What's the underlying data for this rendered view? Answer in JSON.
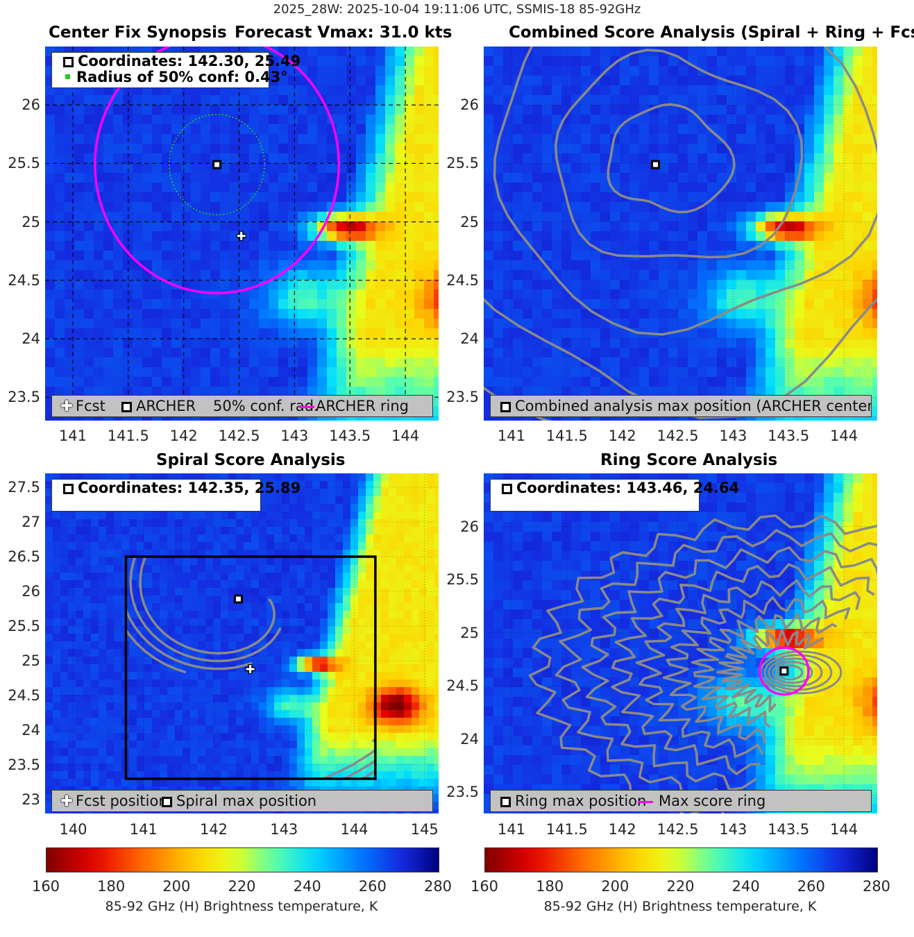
{
  "suptitle": "2025_28W: 2025-10-04 19:11:06 UTC, SSMIS-18 85-92GHz",
  "colors": {
    "ring": "#ff00ff",
    "contour": "#8a8a8a",
    "conf": "#22cc22",
    "box": "#000000"
  },
  "panels": {
    "p1": {
      "title_left": "Center Fix Synopsis",
      "title_right": "Forecast Vmax: 31.0 kts",
      "info1": "Coordinates: 142.30, 25.49",
      "info2": "Radius of 50% conf: 0.43°",
      "legend": {
        "fcst": "Fcst",
        "archer": "ARCHER",
        "conf": "50% conf. rad.",
        "ring": "ARCHER ring"
      }
    },
    "p2": {
      "title": "Combined Score Analysis (Spiral + Ring + Fcst_Pe",
      "legend": "Combined analysis max position (ARCHER center)"
    },
    "p3": {
      "title": "Spiral Score Analysis",
      "info1": "Coordinates: 142.35, 25.89",
      "legend": {
        "fcst": "Fcst position",
        "spiral": "Spiral max position"
      }
    },
    "p4": {
      "title": "Ring Score Analysis",
      "info1": "Coordinates: 143.46, 24.64",
      "legend": {
        "ring_pos": "Ring max position",
        "ring": "Max score ring"
      }
    }
  },
  "chart_data": [
    {
      "type": "heatmap",
      "title": "Center Fix Synopsis",
      "subtitle": "Forecast Vmax: 31.0 kts",
      "xlim": [
        140.75,
        144.3
      ],
      "ylim": [
        23.3,
        26.5
      ],
      "xticks": [
        "141",
        "141.5",
        "142",
        "142.5",
        "143",
        "143.5",
        "144"
      ],
      "yticks": [
        "23.5",
        "24",
        "24.5",
        "25",
        "25.5",
        "26"
      ],
      "archer_center": [
        142.3,
        25.49
      ],
      "forecast_position": [
        142.52,
        24.88
      ],
      "conf_radius_deg": 0.43,
      "archer_ring_radius_deg": 1.1
    },
    {
      "type": "heatmap",
      "title": "Combined Score Analysis (Spiral + Ring + Fcst_Pe",
      "xlim": [
        140.75,
        144.3
      ],
      "ylim": [
        23.3,
        26.5
      ],
      "xticks": [
        "141",
        "141.5",
        "142",
        "142.5",
        "143",
        "143.5",
        "144"
      ],
      "yticks": [
        "23.5",
        "24",
        "24.5",
        "25",
        "25.5",
        "26"
      ],
      "max_position": [
        142.3,
        25.49
      ]
    },
    {
      "type": "heatmap",
      "title": "Spiral Score Analysis",
      "xlim": [
        139.6,
        145.2
      ],
      "ylim": [
        22.8,
        27.7
      ],
      "xticks": [
        "140",
        "141",
        "142",
        "143",
        "144",
        "145"
      ],
      "yticks": [
        "23",
        "23.5",
        "24",
        "24.5",
        "25",
        "25.5",
        "26",
        "26.5",
        "27",
        "27.5"
      ],
      "spiral_max_position": [
        142.35,
        25.89
      ],
      "forecast_position": [
        142.52,
        24.88
      ],
      "search_box": {
        "x": [
          140.75,
          144.3
        ],
        "y": [
          23.3,
          26.5
        ]
      }
    },
    {
      "type": "heatmap",
      "title": "Ring Score Analysis",
      "xlim": [
        140.75,
        144.3
      ],
      "ylim": [
        23.3,
        26.5
      ],
      "xticks": [
        "141",
        "141.5",
        "142",
        "142.5",
        "143",
        "143.5",
        "144"
      ],
      "yticks": [
        "23.5",
        "24",
        "24.5",
        "25",
        "25.5",
        "26"
      ],
      "ring_max_position": [
        143.46,
        24.64
      ],
      "ring_radius_deg": 0.22
    }
  ],
  "colorbar": {
    "ticks": [
      "160",
      "180",
      "200",
      "220",
      "240",
      "260",
      "280"
    ],
    "label": "85-92 GHz (H) Brightness temperature, K",
    "range": [
      160,
      280
    ]
  }
}
